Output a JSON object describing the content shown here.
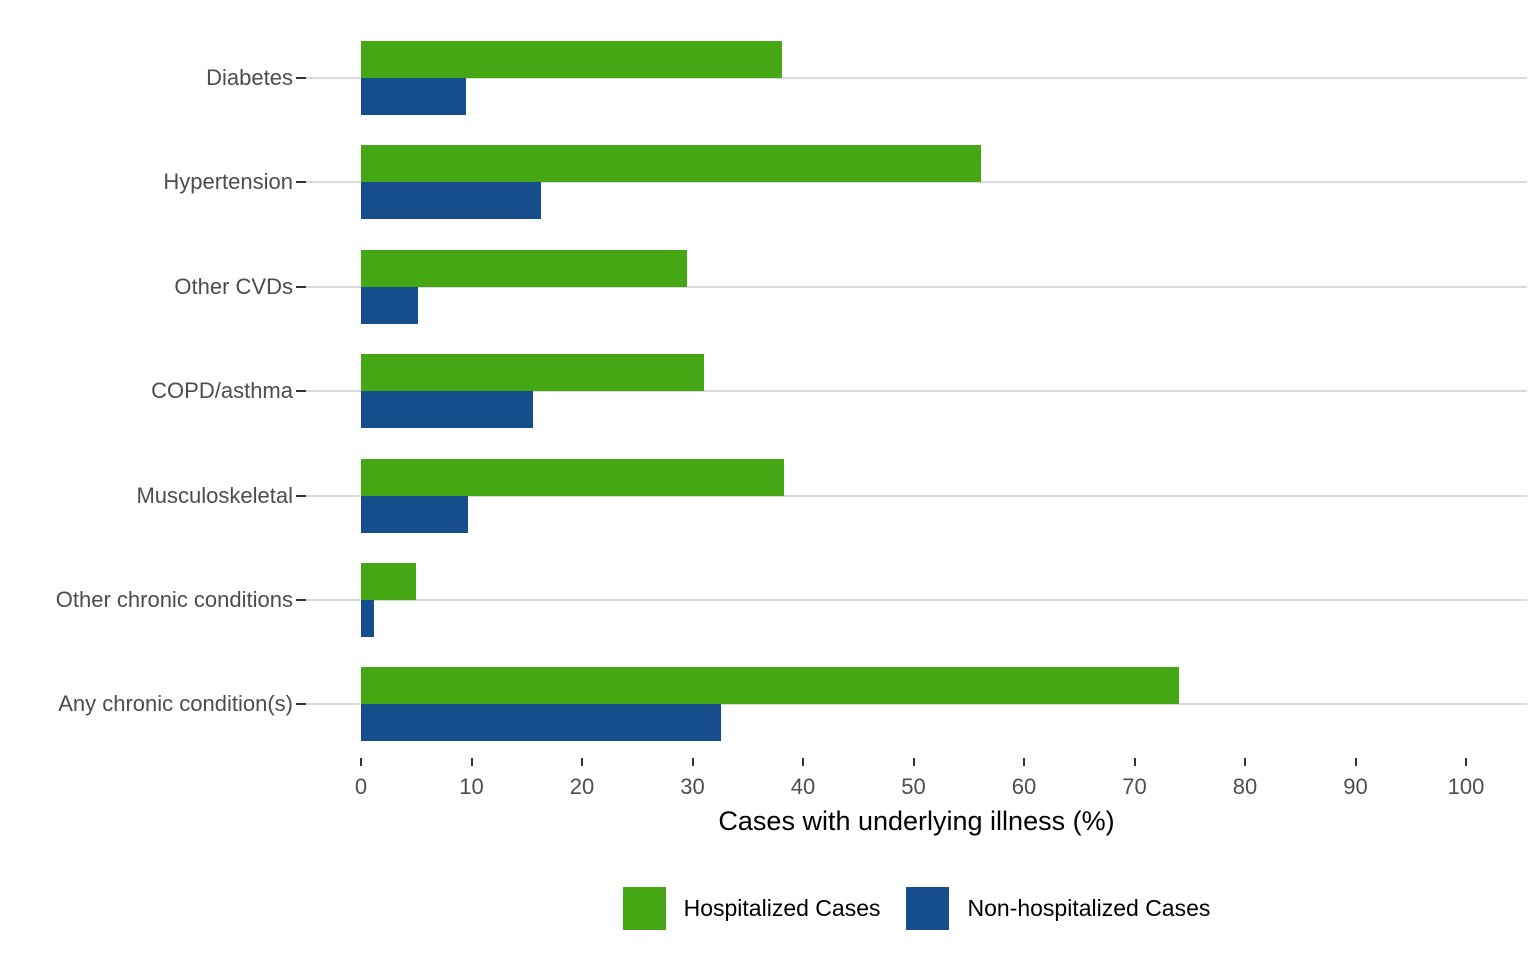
{
  "chart_data": {
    "type": "bar",
    "orientation": "horizontal",
    "title": "",
    "xlabel": "Cases with underlying illness (%)",
    "ylabel": "",
    "categories": [
      "Diabetes",
      "Hypertension",
      "Other CVDs",
      "COPD/asthma",
      "Musculoskeletal",
      "Other chronic conditions",
      "Any chronic condition(s)"
    ],
    "series": [
      {
        "name": "Hospitalized Cases",
        "color": "#46A714",
        "values": [
          38.1,
          56.1,
          29.5,
          31.0,
          38.3,
          5.0,
          74.0
        ]
      },
      {
        "name": "Non-hospitalized Cases",
        "color": "#164D8D",
        "values": [
          9.5,
          16.3,
          5.2,
          15.6,
          9.7,
          1.2,
          32.6
        ]
      }
    ],
    "xlim": [
      0,
      100
    ],
    "xticks": [
      0,
      10,
      20,
      30,
      40,
      50,
      60,
      70,
      80,
      90,
      100
    ],
    "grid": "horizontal-only",
    "legend_position": "bottom-center",
    "colors": {
      "background": "#FFFFFF",
      "gridline": "#D9D9D9",
      "tick_mark": "#333333",
      "axis_text": "#4D4D4D",
      "axis_title_text": "#000000",
      "legend_text": "#000000"
    }
  }
}
